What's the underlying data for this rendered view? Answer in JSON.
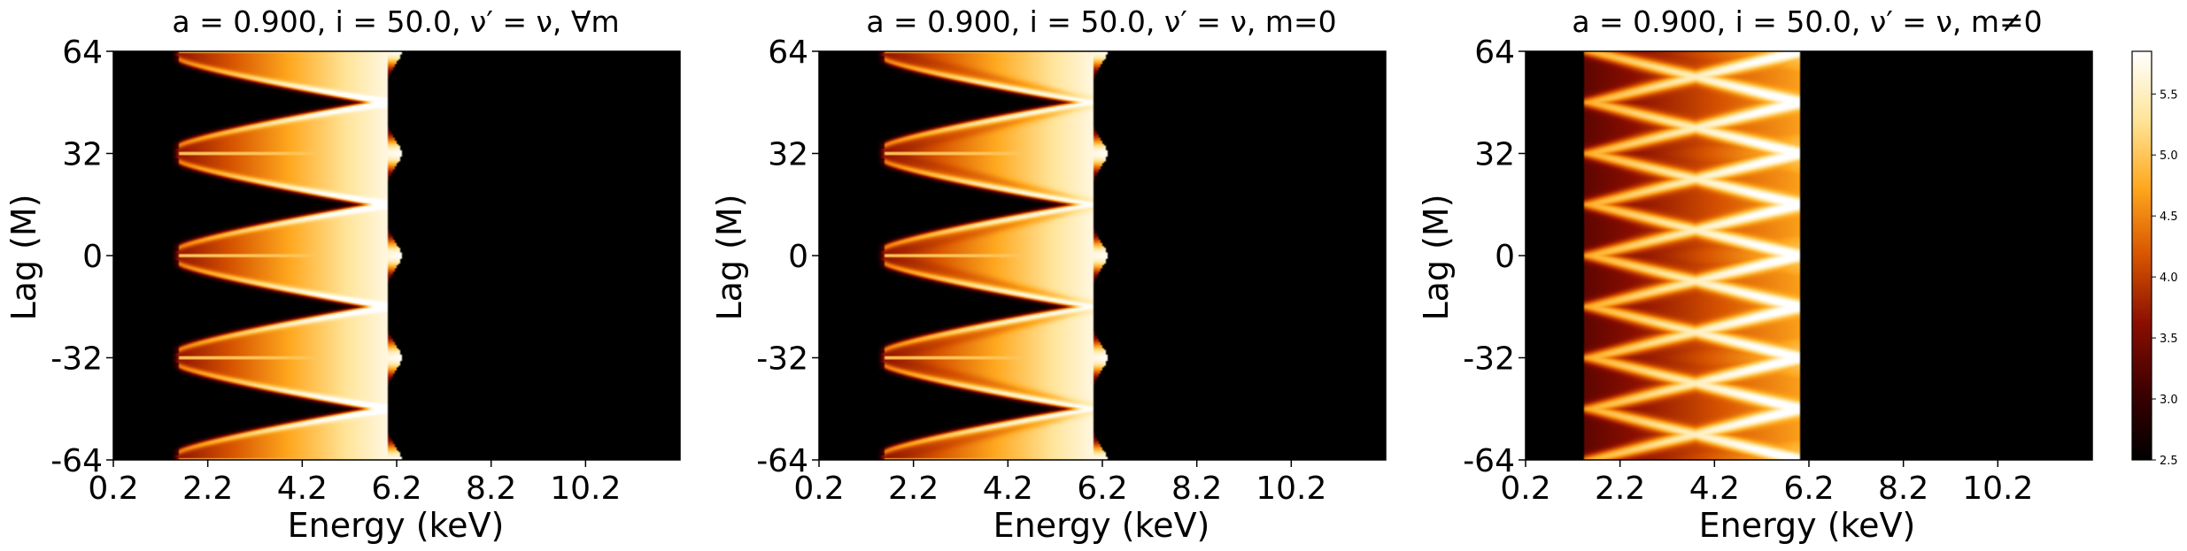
{
  "colormap": "afmhot",
  "colors": {
    "cmap_stops": [
      "#000000",
      "#3d0000",
      "#8a0e00",
      "#d75400",
      "#ffa81e",
      "#ffe59a",
      "#ffffff"
    ],
    "axis": "#000000",
    "background": "#ffffff"
  },
  "chart_data": [
    {
      "type": "heatmap",
      "title": "a = 0.900, i = 50.0, ν′ = ν, ∀m",
      "xlabel": "Energy (keV)",
      "ylabel": "Lag (M)",
      "xticks": [
        "0.2",
        "2.2",
        "4.2",
        "6.2",
        "8.2",
        "10.2"
      ],
      "yticks": [
        "64",
        "32",
        "0",
        "-32",
        "-64"
      ],
      "xlim": [
        0.2,
        12.2
      ],
      "ylim": [
        -64,
        64
      ],
      "features": {
        "energy_min_keV": 1.6,
        "energy_max_keV": 6.0,
        "bright_spine_lags": [
          -64,
          -32,
          0,
          32,
          64
        ],
        "period_M": 32,
        "z_range": [
          2.5,
          5.8
        ]
      }
    },
    {
      "type": "heatmap",
      "title": "a = 0.900, i = 50.0, ν′ = ν, m=0",
      "xlabel": "Energy (keV)",
      "ylabel": "Lag (M)",
      "xticks": [
        "0.2",
        "2.2",
        "4.2",
        "6.2",
        "8.2",
        "10.2"
      ],
      "yticks": [
        "64",
        "32",
        "0",
        "-32",
        "-64"
      ],
      "xlim": [
        0.2,
        12.2
      ],
      "ylim": [
        -64,
        64
      ],
      "features": {
        "energy_min_keV": 1.6,
        "energy_max_keV": 6.0,
        "bright_spine_lags": [
          -64,
          -32,
          0,
          32,
          64
        ],
        "period_M": 32,
        "z_range": [
          2.5,
          5.8
        ]
      }
    },
    {
      "type": "heatmap",
      "title": "a = 0.900, i = 50.0, ν′ = ν, m≠0",
      "xlabel": "Energy (keV)",
      "ylabel": "Lag (M)",
      "xticks": [
        "0.2",
        "2.2",
        "4.2",
        "6.2",
        "8.2",
        "10.2"
      ],
      "yticks": [
        "64",
        "32",
        "0",
        "-32",
        "-64"
      ],
      "xlim": [
        0.2,
        12.2
      ],
      "ylim": [
        -64,
        64
      ],
      "features": {
        "energy_min_keV": 1.6,
        "energy_max_keV": 6.0,
        "bright_spine_lags": [],
        "period_M": 32,
        "z_range": [
          2.5,
          5.8
        ]
      }
    }
  ],
  "colorbar": {
    "ticks": [
      "2.5",
      "3.0",
      "3.5",
      "4.0",
      "4.5",
      "5.0",
      "5.5"
    ],
    "range": [
      2.5,
      5.85
    ]
  }
}
